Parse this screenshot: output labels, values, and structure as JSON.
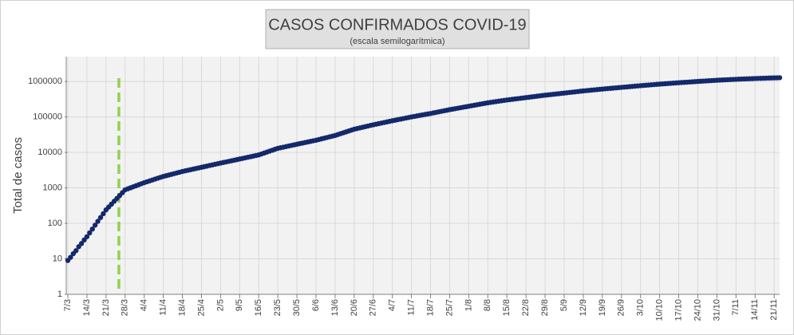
{
  "chart_data": {
    "type": "scatter-line",
    "title": "CASOS CONFIRMADOS COVID-19",
    "subtitle": "(escala semilogarítmica)",
    "y_label": "Total de casos",
    "log_y": true,
    "grid": true,
    "color": "#14296b",
    "ylim": [
      1,
      5000000
    ],
    "yticks": [
      1,
      10,
      100,
      1000,
      10000,
      100000,
      1000000
    ],
    "categories": [
      "7/3",
      null,
      null,
      null,
      null,
      null,
      null,
      "14/3",
      null,
      null,
      null,
      null,
      null,
      null,
      "21/3",
      null,
      null,
      null,
      null,
      null,
      null,
      "28/3",
      null,
      null,
      null,
      null,
      null,
      null,
      "4/4",
      null,
      null,
      null,
      null,
      null,
      null,
      "11/4",
      null,
      null,
      null,
      null,
      null,
      null,
      "18/4",
      null,
      null,
      null,
      null,
      null,
      null,
      "25/4",
      null,
      null,
      null,
      null,
      null,
      null,
      "2/5",
      null,
      null,
      null,
      null,
      null,
      null,
      "9/5",
      null,
      null,
      null,
      null,
      null,
      null,
      "16/5",
      null,
      null,
      null,
      null,
      null,
      null,
      "23/5",
      null,
      null,
      null,
      null,
      null,
      null,
      "30/5",
      null,
      null,
      null,
      null,
      null,
      null,
      "6/6",
      null,
      null,
      null,
      null,
      null,
      null,
      "13/6",
      null,
      null,
      null,
      null,
      null,
      null,
      "20/6",
      null,
      null,
      null,
      null,
      null,
      null,
      "27/6",
      null,
      null,
      null,
      null,
      null,
      null,
      "4/7",
      null,
      null,
      null,
      null,
      null,
      null,
      "11/7",
      null,
      null,
      null,
      null,
      null,
      null,
      "18/7",
      null,
      null,
      null,
      null,
      null,
      null,
      "25/7",
      null,
      null,
      null,
      null,
      null,
      null,
      "1/8",
      null,
      null,
      null,
      null,
      null,
      null,
      "8/8",
      null,
      null,
      null,
      null,
      null,
      null,
      "15/8",
      null,
      null,
      null,
      null,
      null,
      null,
      "22/8",
      null,
      null,
      null,
      null,
      null,
      null,
      "29/8",
      null,
      null,
      null,
      null,
      null,
      null,
      "5/9",
      null,
      null,
      null,
      null,
      null,
      null,
      "12/9",
      null,
      null,
      null,
      null,
      null,
      null,
      "19/9",
      null,
      null,
      null,
      null,
      null,
      null,
      "26/9",
      null,
      null,
      null,
      null,
      null,
      null,
      "3/10",
      null,
      null,
      null,
      null,
      null,
      null,
      "10/10",
      null,
      null,
      null,
      null,
      null,
      null,
      "17/10",
      null,
      null,
      null,
      null,
      null,
      null,
      "24/10",
      null,
      null,
      null,
      null,
      null,
      null,
      "31/10",
      null,
      null,
      null,
      null,
      null,
      null,
      "7/11",
      null,
      null,
      null,
      null,
      null,
      null,
      "14/11",
      null,
      null,
      null,
      null,
      null,
      null,
      "21/11",
      null,
      null
    ],
    "values": [
      9,
      11,
      14,
      17,
      22,
      27,
      34,
      42,
      54,
      69,
      89,
      114,
      146,
      187,
      240,
      289,
      348,
      419,
      504,
      607,
      731,
      880,
      941,
      1006,
      1075,
      1149,
      1228,
      1313,
      1400,
      1484,
      1573,
      1668,
      1768,
      1874,
      1986,
      2100,
      2199,
      2302,
      2410,
      2523,
      2642,
      2766,
      2900,
      3014,
      3133,
      3256,
      3385,
      3518,
      3657,
      3800,
      3952,
      4110,
      4274,
      4445,
      4623,
      4808,
      5000,
      5190,
      5387,
      5592,
      5804,
      6025,
      6254,
      6500,
      6754,
      7017,
      7291,
      7575,
      7871,
      8178,
      8500,
      9036,
      9605,
      10210,
      10853,
      11537,
      12264,
      13000,
      13507,
      14034,
      14581,
      15150,
      15741,
      16355,
      17000,
      17638,
      18299,
      18985,
      19697,
      20436,
      21202,
      22000,
      22997,
      24039,
      25128,
      26266,
      27456,
      28700,
      30000,
      31788,
      33683,
      35690,
      37817,
      40071,
      42459,
      45000,
      46890,
      48859,
      50911,
      53050,
      55278,
      57600,
      60000,
      62280,
      64647,
      67103,
      69653,
      72300,
      75048,
      78000,
      80808,
      83717,
      86731,
      89853,
      93088,
      96439,
      100000,
      103240,
      106585,
      110039,
      113604,
      117285,
      121085,
      125000,
      129488,
      134136,
      138952,
      143940,
      149108,
      154461,
      160000,
      165184,
      170536,
      176061,
      181766,
      187655,
      193735,
      200000,
      206480,
      213170,
      220077,
      227207,
      234569,
      242169,
      250000,
      256600,
      263374,
      270327,
      277464,
      284789,
      292307,
      300000,
      306690,
      313529,
      320521,
      327668,
      334976,
      342446,
      350000,
      358015,
      366213,
      374600,
      383178,
      391953,
      400929,
      410000,
      418077,
      426313,
      434712,
      443276,
      452008,
      460913,
      470000,
      479400,
      488988,
      498768,
      508743,
      518918,
      529296,
      540000,
      549504,
      559175,
      569017,
      579032,
      589223,
      599594,
      610000,
      619516,
      629180,
      638996,
      648964,
      659088,
      669369,
      680000,
      690880,
      701934,
      713165,
      724576,
      736169,
      747948,
      760000,
      770944,
      782046,
      793307,
      804731,
      816319,
      828074,
      840000,
      851004,
      862152,
      873447,
      884889,
      896481,
      908225,
      920000,
      931040,
      942212,
      953519,
      964961,
      976541,
      988259,
      1000000,
      1011000,
      1022121,
      1033364,
      1044731,
      1056223,
      1067842,
      1080000,
      1089720,
      1099527,
      1109423,
      1119408,
      1129483,
      1139648,
      1150000,
      1158395,
      1166851,
      1175369,
      1183950,
      1192593,
      1201299,
      1210000,
      1217018,
      1224077,
      1231177,
      1238317,
      1245499,
      1252723,
      1260000,
      1267000,
      1274000
    ]
  }
}
